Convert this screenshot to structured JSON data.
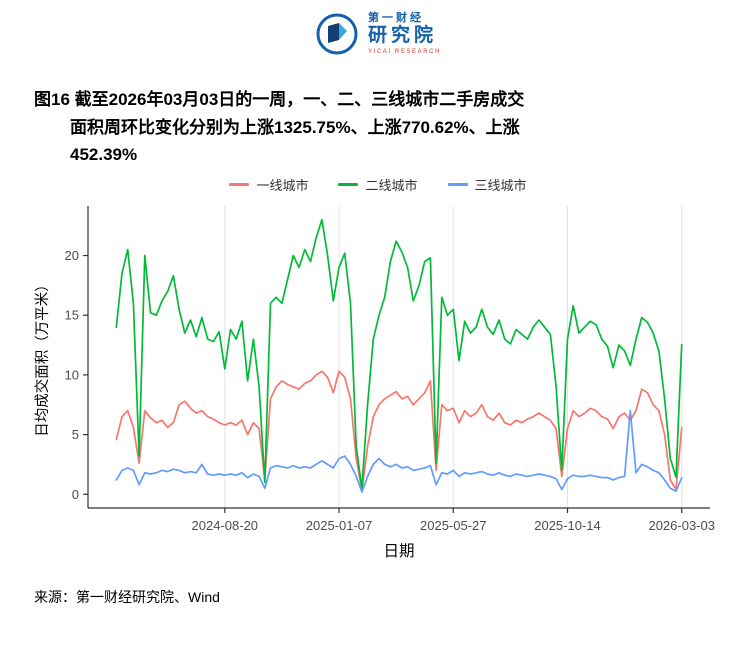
{
  "page": {
    "logo": {
      "brand_top": "第一财经",
      "brand_bottom": "研究院",
      "brand_sub": "YICAI RESEARCH",
      "brand_color": "#1561a9",
      "accent_red": "#d43a2f"
    },
    "title_lines": [
      "图16  截至2026年03月03日的一周，一、二、三线城市二手房成交",
      "面积周环比变化分别为上涨1325.75%、上涨770.62%、上涨",
      "452.39%"
    ],
    "source": "来源：第一财经研究院、Wind"
  },
  "chart_data": {
    "type": "line",
    "title": "图16 截至2026年03月03日的一周，一、二、三线城市二手房成交面积周环比变化分别为上涨1325.75%、上涨770.62%、上涨452.39%",
    "xlabel": "日期",
    "ylabel": "日均成交面积（万平米）",
    "ylim": [
      0,
      23
    ],
    "yticks": [
      0,
      5,
      10,
      15,
      20
    ],
    "xticks": [
      "2024-08-20",
      "2025-01-07",
      "2025-05-27",
      "2025-10-14",
      "2026-03-03"
    ],
    "legend_position": "top",
    "grid": "vertical-major-only",
    "gridline_color": "#e3e3e3",
    "axis_color": "#333333",
    "x": [
      "2024-04-09",
      "2024-04-16",
      "2024-04-23",
      "2024-04-30",
      "2024-05-07",
      "2024-05-14",
      "2024-05-21",
      "2024-05-28",
      "2024-06-04",
      "2024-06-11",
      "2024-06-18",
      "2024-06-25",
      "2024-07-02",
      "2024-07-09",
      "2024-07-16",
      "2024-07-23",
      "2024-07-30",
      "2024-08-06",
      "2024-08-13",
      "2024-08-20",
      "2024-08-27",
      "2024-09-03",
      "2024-09-10",
      "2024-09-17",
      "2024-09-24",
      "2024-10-01",
      "2024-10-08",
      "2024-10-15",
      "2024-10-22",
      "2024-10-29",
      "2024-11-05",
      "2024-11-12",
      "2024-11-19",
      "2024-11-26",
      "2024-12-03",
      "2024-12-10",
      "2024-12-17",
      "2024-12-24",
      "2024-12-31",
      "2025-01-07",
      "2025-01-14",
      "2025-01-21",
      "2025-01-28",
      "2025-02-04",
      "2025-02-11",
      "2025-02-18",
      "2025-02-25",
      "2025-03-04",
      "2025-03-11",
      "2025-03-18",
      "2025-03-25",
      "2025-04-01",
      "2025-04-08",
      "2025-04-15",
      "2025-04-22",
      "2025-04-29",
      "2025-05-06",
      "2025-05-13",
      "2025-05-20",
      "2025-05-27",
      "2025-06-03",
      "2025-06-10",
      "2025-06-17",
      "2025-06-24",
      "2025-07-01",
      "2025-07-08",
      "2025-07-15",
      "2025-07-22",
      "2025-07-29",
      "2025-08-05",
      "2025-08-12",
      "2025-08-19",
      "2025-08-26",
      "2025-09-02",
      "2025-09-09",
      "2025-09-16",
      "2025-09-23",
      "2025-09-30",
      "2025-10-07",
      "2025-10-14",
      "2025-10-21",
      "2025-10-28",
      "2025-11-04",
      "2025-11-11",
      "2025-11-18",
      "2025-11-25",
      "2025-12-02",
      "2025-12-09",
      "2025-12-16",
      "2025-12-23",
      "2025-12-30",
      "2026-01-06",
      "2026-01-13",
      "2026-01-20",
      "2026-01-27",
      "2026-02-03",
      "2026-02-10",
      "2026-02-17",
      "2026-02-24",
      "2026-03-03"
    ],
    "series": [
      {
        "name": "一线城市",
        "color": "#F8766D",
        "values": [
          4.6,
          6.5,
          7.0,
          5.6,
          2.6,
          7.0,
          6.4,
          6.0,
          6.2,
          5.6,
          6.0,
          7.5,
          7.8,
          7.2,
          6.8,
          7.0,
          6.5,
          6.3,
          6.0,
          5.8,
          6.0,
          5.8,
          6.2,
          5.0,
          6.0,
          5.5,
          1.2,
          8.0,
          9.0,
          9.5,
          9.2,
          9.0,
          8.8,
          9.3,
          9.5,
          10.0,
          10.3,
          9.8,
          8.5,
          10.3,
          9.8,
          8.0,
          3.0,
          0.3,
          4.0,
          6.5,
          7.5,
          8.0,
          8.3,
          8.6,
          8.0,
          8.2,
          7.5,
          8.0,
          8.5,
          9.5,
          2.0,
          7.5,
          7.0,
          7.2,
          6.0,
          7.0,
          6.5,
          6.8,
          7.5,
          6.5,
          6.2,
          6.8,
          6.0,
          5.8,
          6.2,
          6.0,
          6.3,
          6.5,
          6.8,
          6.5,
          6.2,
          5.5,
          1.5,
          5.5,
          7.0,
          6.5,
          6.8,
          7.2,
          7.0,
          6.5,
          6.3,
          5.5,
          6.5,
          6.8,
          6.2,
          7.0,
          8.8,
          8.5,
          7.5,
          7.0,
          5.0,
          1.2,
          0.39,
          5.56
        ]
      },
      {
        "name": "二线城市",
        "color": "#00BA38",
        "values": [
          14.0,
          18.5,
          20.5,
          16.0,
          3.2,
          20.0,
          15.2,
          15.0,
          16.2,
          17.0,
          18.3,
          15.5,
          13.5,
          14.6,
          13.2,
          14.8,
          13.0,
          12.8,
          13.6,
          10.5,
          13.8,
          13.0,
          14.5,
          9.5,
          13.0,
          9.0,
          1.0,
          16.0,
          16.5,
          16.0,
          18.0,
          20.0,
          19.0,
          20.5,
          19.5,
          21.5,
          23.0,
          20.0,
          16.2,
          19.0,
          20.2,
          16.0,
          4.0,
          0.5,
          7.5,
          13.0,
          15.0,
          16.5,
          19.5,
          21.2,
          20.3,
          19.0,
          16.2,
          17.5,
          19.5,
          19.8,
          2.6,
          16.5,
          15.0,
          15.5,
          11.2,
          14.5,
          13.5,
          14.0,
          15.5,
          14.0,
          13.4,
          14.6,
          13.0,
          12.6,
          13.8,
          13.4,
          13.0,
          14.0,
          14.6,
          14.0,
          13.4,
          9.0,
          2.0,
          13.0,
          15.8,
          13.5,
          14.0,
          14.5,
          14.2,
          13.0,
          12.4,
          10.6,
          12.5,
          12.0,
          10.8,
          13.0,
          14.8,
          14.4,
          13.5,
          12.0,
          8.0,
          3.0,
          1.44,
          12.54
        ]
      },
      {
        "name": "三线城市",
        "color": "#619CFF",
        "values": [
          1.2,
          2.0,
          2.2,
          2.0,
          0.8,
          1.8,
          1.7,
          1.8,
          2.0,
          1.9,
          2.1,
          2.0,
          1.8,
          1.9,
          1.8,
          2.5,
          1.7,
          1.6,
          1.7,
          1.6,
          1.7,
          1.6,
          1.8,
          1.4,
          1.7,
          1.5,
          0.5,
          2.2,
          2.4,
          2.3,
          2.2,
          2.4,
          2.2,
          2.3,
          2.2,
          2.5,
          2.8,
          2.5,
          2.2,
          3.0,
          3.2,
          2.5,
          1.5,
          0.2,
          1.5,
          2.5,
          3.0,
          2.5,
          2.3,
          2.5,
          2.2,
          2.3,
          2.0,
          2.1,
          2.2,
          2.4,
          0.8,
          1.8,
          1.7,
          2.0,
          1.5,
          1.8,
          1.7,
          1.8,
          1.9,
          1.7,
          1.6,
          1.8,
          1.6,
          1.5,
          1.7,
          1.6,
          1.5,
          1.6,
          1.7,
          1.6,
          1.5,
          1.3,
          0.4,
          1.3,
          1.6,
          1.5,
          1.5,
          1.6,
          1.5,
          1.4,
          1.4,
          1.2,
          1.4,
          1.5,
          7.0,
          1.8,
          2.5,
          2.3,
          2.0,
          1.8,
          1.2,
          0.5,
          0.25,
          1.38
        ]
      }
    ]
  }
}
